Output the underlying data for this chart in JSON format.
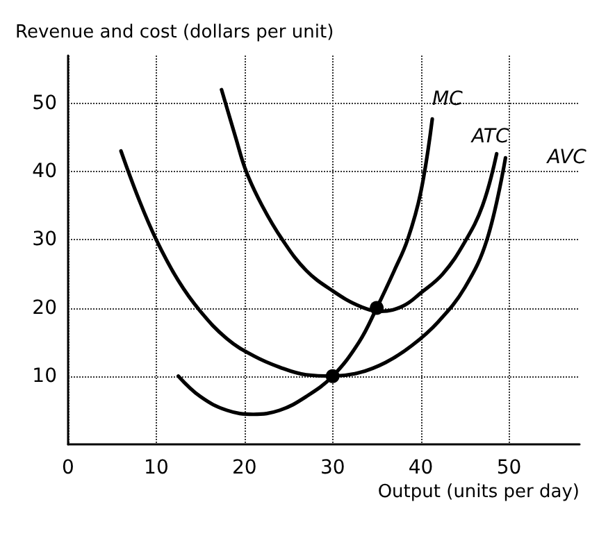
{
  "chart_data": {
    "type": "line",
    "ylabel": "Revenue and cost (dollars per unit)",
    "xlabel": "Output (units per day)",
    "xlim": [
      0,
      58
    ],
    "ylim": [
      0,
      57
    ],
    "xticks": [
      0,
      10,
      20,
      30,
      40,
      50
    ],
    "yticks": [
      10,
      20,
      30,
      40,
      50
    ],
    "grid": true,
    "legend": false,
    "marker": "none",
    "line_style": "solid",
    "series": [
      {
        "name": "MC",
        "color": "#000000",
        "x": [
          12.5,
          15,
          18,
          21,
          24,
          27,
          30,
          33,
          35,
          37,
          38.5,
          40,
          41.3
        ],
        "values": [
          10,
          7,
          5,
          4.4,
          5,
          7,
          10,
          15,
          20,
          25.5,
          30,
          37,
          47.7
        ]
      },
      {
        "name": "ATC",
        "color": "#000000",
        "x": [
          17.4,
          19,
          20.2,
          22,
          24.3,
          27,
          30,
          33,
          35.5,
          38,
          40,
          42.5,
          45,
          47,
          48.6
        ],
        "values": [
          52,
          45,
          40,
          35,
          30,
          25.5,
          22.5,
          20.3,
          19.5,
          20.3,
          22.2,
          25,
          29.7,
          35,
          42.6
        ]
      },
      {
        "name": "AVC",
        "color": "#000000",
        "x": [
          6,
          8,
          10,
          12.5,
          15,
          18,
          21,
          24,
          27,
          30,
          33,
          36,
          39,
          42,
          45,
          47.5,
          49.6
        ],
        "values": [
          43,
          36,
          30,
          24,
          19.5,
          15.5,
          13,
          11.3,
          10.2,
          10,
          10.5,
          12,
          14.5,
          18,
          23,
          30,
          42
        ]
      },
      {
        "type": "scatter",
        "marker": "circle",
        "color": "#000000",
        "x": [
          30,
          35
        ],
        "values": [
          10,
          20
        ]
      }
    ]
  }
}
